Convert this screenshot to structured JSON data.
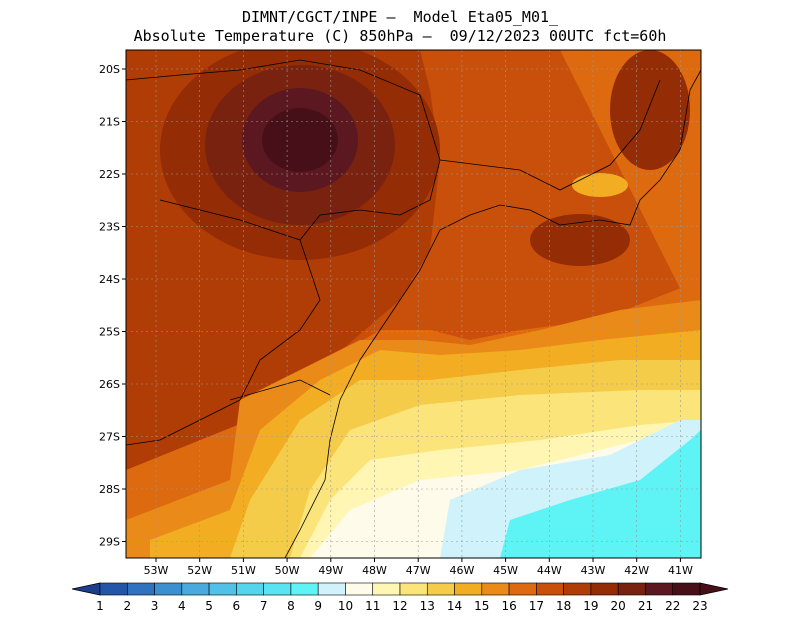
{
  "header": {
    "line1": "DIMNT/CGCT/INPE –  Model Eta05_M01_",
    "line2": "Absolute Temperature (C) 850hPa –  09/12/2023 00UTC fct=60h"
  },
  "map": {
    "lat_labels": [
      "20S",
      "21S",
      "22S",
      "23S",
      "24S",
      "25S",
      "26S",
      "27S",
      "28S",
      "29S"
    ],
    "lon_labels": [
      "53W",
      "52W",
      "51W",
      "50W",
      "49W",
      "48W",
      "47W",
      "46W",
      "45W",
      "44W",
      "43W",
      "42W",
      "41W"
    ]
  },
  "colorbar": {
    "labels": [
      "1",
      "2",
      "3",
      "4",
      "5",
      "6",
      "7",
      "8",
      "9",
      "10",
      "11",
      "12",
      "13",
      "14",
      "15",
      "16",
      "17",
      "18",
      "19",
      "20",
      "21",
      "22",
      "23"
    ],
    "colors": [
      "#1a3f8f",
      "#2356a8",
      "#2f73c0",
      "#3b90d2",
      "#4aa9df",
      "#52c1e8",
      "#55d4ee",
      "#58e4f2",
      "#5ef4f6",
      "#cff2fb",
      "#fffbea",
      "#fff6b4",
      "#fbe57a",
      "#f5cc4a",
      "#f2ad22",
      "#ea8a18",
      "#de6a10",
      "#c9500b",
      "#b03c06",
      "#942c06",
      "#7a2210",
      "#5c1820",
      "#471018"
    ]
  }
}
